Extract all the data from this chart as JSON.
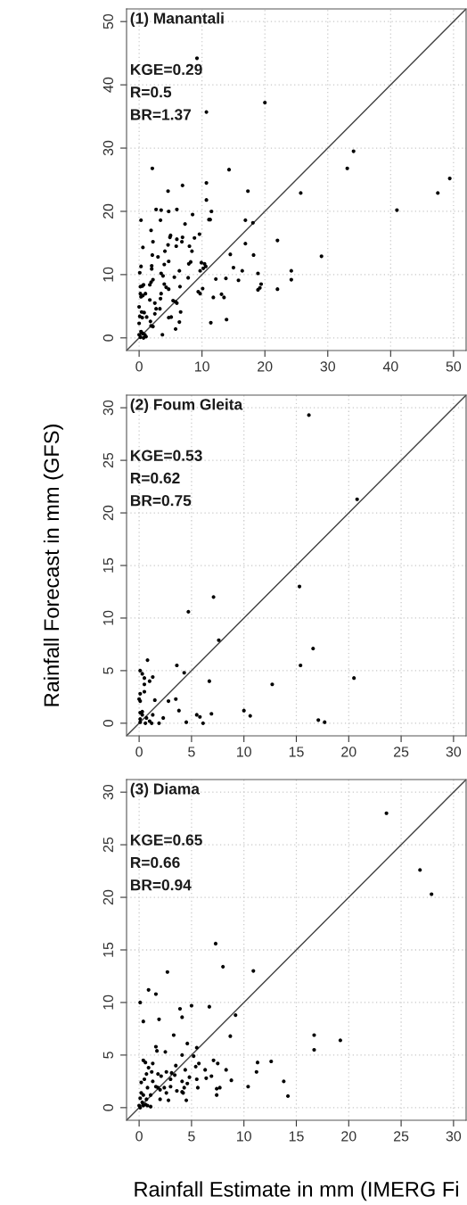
{
  "chart_data": [
    {
      "type": "scatter",
      "title": "(1) Manantali",
      "annotations": [
        "KGE=0.29",
        "R=0.5",
        "BR=1.37"
      ],
      "xlim": [
        -2,
        52
      ],
      "ylim": [
        -2,
        52
      ],
      "xticks": [
        0,
        10,
        20,
        30,
        40,
        50
      ],
      "yticks": [
        0,
        10,
        20,
        30,
        40,
        50
      ],
      "grid": true,
      "series": [
        {
          "marker": "circle",
          "color": "#000000",
          "x": [
            9.2,
            10.7,
            20.0,
            34.1,
            33.1,
            49.4,
            47.5,
            41.0,
            25.7,
            29.0,
            22.0,
            22.0,
            24.2,
            24.2,
            18.9,
            19.4,
            18.9,
            19.2,
            18.2,
            16.9,
            16.9,
            18.1,
            17.3,
            14.3,
            10.7,
            10.7,
            11.5,
            11.1,
            11.3,
            14.5,
            15.0,
            16.4,
            15.8,
            13.8,
            12.2,
            13.1,
            13.5,
            11.8,
            11.4,
            13.9,
            10.1,
            9.4,
            9.7,
            9.9,
            10.4,
            10.6,
            10.2,
            9.7,
            9.6,
            8.5,
            6.9,
            6.0,
            7.3,
            4.6,
            2.1,
            2.7,
            3.5,
            4.7,
            0.3,
            3.4,
            1.9,
            5.0,
            4.9,
            6.0,
            5.9,
            6.9,
            6.8,
            8.8,
            8.0,
            8.4,
            4.6,
            2.2,
            0.6,
            2.1,
            3.0,
            4.1,
            4.7,
            4.0,
            8.2,
            7.9,
            7.8,
            6.4,
            5.6,
            0.3,
            2.0,
            2.0,
            0.1,
            3.5,
            3.8,
            2.2,
            1.9,
            1.7,
            4.0,
            4.3,
            4.7,
            6.5,
            0.5,
            0.2,
            0.7,
            0.2,
            0.6,
            1.0,
            0.3,
            3.5,
            3.4,
            1.7,
            2.5,
            5.4,
            5.8,
            6.0,
            2.7,
            3.3,
            0.0,
            6.6,
            0.4,
            0.8,
            2.5,
            0.1,
            0.5,
            1.2,
            4.7,
            5.1,
            1.8,
            6.4,
            1.9,
            2.2,
            5.8,
            3.7,
            0.0,
            0.3,
            0.6,
            0.9,
            1.1,
            0.0,
            0.2,
            0.7,
            0.4
          ],
          "values": [
            44.2,
            35.7,
            37.2,
            29.5,
            26.8,
            25.2,
            22.9,
            20.2,
            22.9,
            12.9,
            15.4,
            7.7,
            10.6,
            9.2,
            10.2,
            8.5,
            7.6,
            7.9,
            13.1,
            14.9,
            18.6,
            18.2,
            23.2,
            26.6,
            24.5,
            21.8,
            20.0,
            18.7,
            18.7,
            13.2,
            11.1,
            10.6,
            9.1,
            9.4,
            9.3,
            6.9,
            6.4,
            6.4,
            2.4,
            2.9,
            7.8,
            7.3,
            7.0,
            11.9,
            11.7,
            11.3,
            11.0,
            10.6,
            16.4,
            19.5,
            24.1,
            20.3,
            18.0,
            23.2,
            26.8,
            20.3,
            20.2,
            20.0,
            18.6,
            18.6,
            17.0,
            16.2,
            15.9,
            15.6,
            14.5,
            15.9,
            15.2,
            15.8,
            14.5,
            13.7,
            14.7,
            15.2,
            14.3,
            13.1,
            12.8,
            13.7,
            12.1,
            11.6,
            12.0,
            11.7,
            9.5,
            10.6,
            9.6,
            11.3,
            11.4,
            10.9,
            10.3,
            10.2,
            9.8,
            9.2,
            8.8,
            8.4,
            8.5,
            8.0,
            7.7,
            8.1,
            8.2,
            8.1,
            8.4,
            7.0,
            6.7,
            7.0,
            6.5,
            7.0,
            6.2,
            6.0,
            5.5,
            5.9,
            5.7,
            5.5,
            4.6,
            4.6,
            4.9,
            4.1,
            4.1,
            4.0,
            3.8,
            3.4,
            3.2,
            3.3,
            3.2,
            3.3,
            2.6,
            2.5,
            1.9,
            1.8,
            1.4,
            0.5,
            2.3,
            1.0,
            0.7,
            0.5,
            0.2,
            0.5,
            0.1,
            0.0,
            0.8
          ]
        },
        {
          "type": "line",
          "color": "#404040",
          "x": [
            -2,
            52
          ],
          "values": [
            -2,
            52
          ]
        }
      ]
    },
    {
      "type": "scatter",
      "title": "(2) Foum Gleita",
      "ylabel": "Rainfall Forecast in mm (GFS)",
      "annotations": [
        "KGE=0.53",
        "R=0.62",
        "BR=0.75"
      ],
      "xlim": [
        -1.2,
        31.2
      ],
      "ylim": [
        -1.2,
        31.2
      ],
      "xticks": [
        0,
        5,
        10,
        15,
        20,
        25,
        30
      ],
      "yticks": [
        0,
        5,
        10,
        15,
        20,
        25,
        30
      ],
      "grid": true,
      "series": [
        {
          "marker": "circle",
          "color": "#000000",
          "x": [
            16.2,
            20.8,
            15.3,
            7.1,
            4.7,
            7.6,
            16.6,
            15.4,
            20.5,
            12.7,
            6.7,
            3.6,
            4.3,
            0.8,
            0.1,
            0.3,
            0.5,
            1.3,
            1.0,
            0.5,
            0.5,
            0.1,
            0.0,
            0.1,
            1.5,
            2.8,
            3.5,
            3.8,
            10.0,
            10.6,
            6.9,
            5.5,
            5.8,
            6.1,
            4.5,
            2.3,
            1.9,
            17.1,
            17.7,
            1.3,
            0.3,
            0.1,
            0.3,
            0.7,
            1.0,
            0.1,
            0.1,
            0.6,
            1.2
          ],
          "values": [
            29.3,
            21.3,
            13.0,
            12.0,
            10.6,
            7.9,
            7.1,
            5.5,
            4.3,
            3.7,
            4.0,
            5.5,
            4.8,
            6.0,
            5.0,
            4.7,
            4.3,
            4.4,
            4.0,
            3.7,
            3.0,
            2.8,
            2.3,
            2.1,
            2.2,
            2.1,
            2.3,
            1.2,
            1.2,
            0.7,
            0.9,
            0.8,
            0.6,
            0.0,
            0.1,
            0.5,
            0.0,
            0.3,
            0.1,
            0.8,
            1.1,
            1.0,
            0.8,
            0.5,
            0.2,
            0.4,
            0.1,
            0.0,
            0.0
          ]
        },
        {
          "type": "line",
          "color": "#404040",
          "x": [
            -1.2,
            31.2
          ],
          "values": [
            -1.2,
            31.2
          ]
        }
      ]
    },
    {
      "type": "scatter",
      "title": "(3) Diama",
      "xlabel": "Rainfall Estimate in mm (IMERG Fi",
      "annotations": [
        "KGE=0.65",
        "R=0.66",
        "BR=0.94"
      ],
      "xlim": [
        -1.2,
        31.2
      ],
      "ylim": [
        -1.2,
        31.2
      ],
      "xticks": [
        0,
        5,
        10,
        15,
        20,
        25,
        30
      ],
      "yticks": [
        0,
        5,
        10,
        15,
        20,
        25,
        30
      ],
      "grid": true,
      "series": [
        {
          "marker": "circle",
          "color": "#000000",
          "x": [
            23.6,
            26.8,
            27.9,
            7.3,
            8.0,
            10.9,
            2.7,
            0.9,
            1.6,
            0.1,
            5.0,
            6.7,
            3.9,
            4.1,
            9.2,
            0.4,
            1.9,
            3.3,
            8.7,
            16.7,
            19.2,
            16.7,
            4.6,
            5.5,
            1.6,
            1.7,
            2.5,
            4.1,
            5.2,
            7.1,
            7.5,
            12.6,
            11.3,
            11.2,
            5.7,
            5.4,
            6.3,
            8.3,
            4.4,
            3.5,
            0.4,
            0.6,
            1.3,
            0.9,
            1.2,
            0.7,
            1.8,
            2.1,
            2.6,
            3.1,
            3.4,
            6.9,
            6.4,
            4.8,
            5.5,
            8.8,
            13.8,
            4.1,
            3.0,
            0.5,
            0.2,
            1.3,
            0.8,
            1.6,
            1.8,
            2.0,
            2.4,
            3.0,
            3.6,
            4.3,
            4.6,
            5.6,
            7.4,
            7.7,
            10.4,
            4.2,
            4.1,
            7.4,
            14.2,
            2.6,
            2.8,
            4.5,
            2.0,
            0.2,
            0.4,
            1.1,
            0.1,
            0.7,
            0.3,
            0.0,
            0.4,
            0.8,
            1.1,
            0.1,
            0.6
          ],
          "values": [
            28.0,
            22.6,
            20.3,
            15.6,
            13.4,
            13.0,
            12.9,
            11.2,
            10.8,
            10.0,
            9.7,
            9.6,
            9.4,
            8.6,
            8.8,
            8.2,
            8.4,
            6.9,
            6.8,
            6.9,
            6.4,
            5.5,
            6.1,
            5.7,
            5.8,
            5.4,
            5.3,
            5.0,
            4.9,
            4.5,
            4.2,
            4.4,
            4.3,
            3.4,
            4.2,
            3.9,
            3.6,
            3.6,
            3.6,
            4.0,
            4.5,
            4.3,
            4.2,
            3.8,
            3.4,
            3.2,
            3.2,
            3.0,
            3.4,
            3.3,
            3.1,
            3.0,
            2.8,
            2.9,
            2.7,
            2.6,
            2.5,
            2.5,
            2.7,
            2.7,
            2.4,
            2.5,
            1.9,
            2.0,
            1.9,
            1.7,
            1.9,
            2.0,
            1.6,
            1.9,
            2.3,
            1.9,
            1.8,
            1.9,
            2.0,
            1.4,
            1.5,
            1.2,
            1.1,
            1.4,
            0.7,
            0.7,
            0.8,
            1.4,
            1.2,
            1.2,
            0.9,
            0.8,
            0.5,
            0.2,
            0.2,
            0.2,
            0.1,
            0.0,
            0.3
          ]
        },
        {
          "type": "line",
          "color": "#404040",
          "x": [
            -1.2,
            31.2
          ],
          "values": [
            -1.2,
            31.2
          ]
        }
      ]
    }
  ]
}
